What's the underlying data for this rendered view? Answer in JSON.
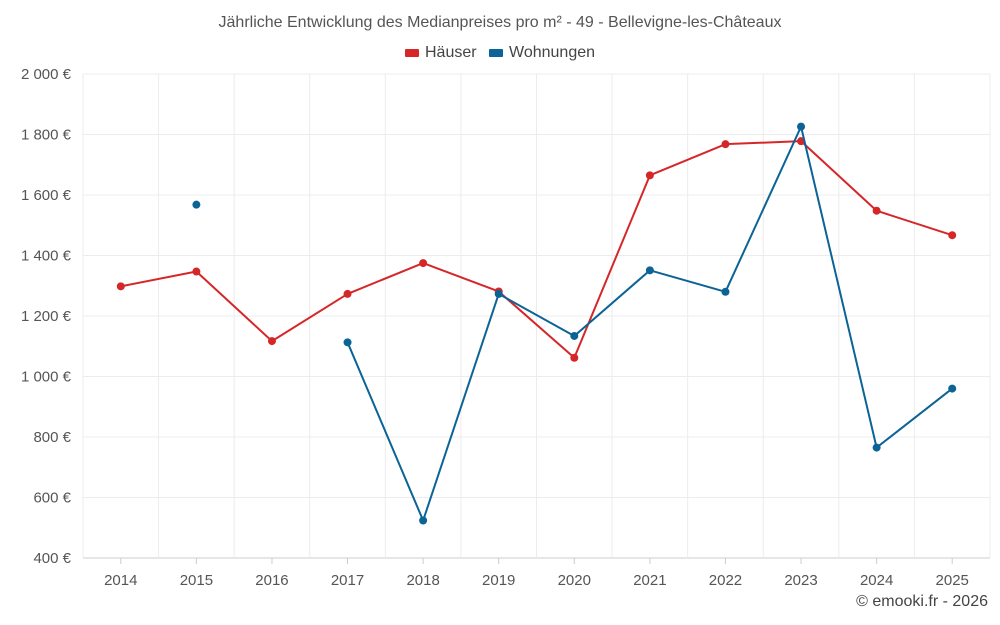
{
  "chart_data": {
    "type": "line",
    "title": "Jährliche Entwicklung des Medianpreises pro m² - 49 - Bellevigne-les-Châteaux",
    "categories": [
      "2014",
      "2015",
      "2016",
      "2017",
      "2018",
      "2019",
      "2020",
      "2021",
      "2022",
      "2023",
      "2024",
      "2025"
    ],
    "ylim": [
      400,
      2000
    ],
    "yticks": [
      400,
      600,
      800,
      1000,
      1200,
      1400,
      1600,
      1800,
      2000
    ],
    "ytick_labels": [
      "400 €",
      "600 €",
      "800 €",
      "1 000 €",
      "1 200 €",
      "1 400 €",
      "1 600 €",
      "1 800 €",
      "2 000 €"
    ],
    "grid": true,
    "legend_position": "top-center",
    "series": [
      {
        "name": "Häuser",
        "color": "#d62728",
        "values": [
          1298,
          1347,
          1117,
          1273,
          1375,
          1281,
          1062,
          1665,
          1768,
          1778,
          1548,
          1467
        ]
      },
      {
        "name": "Wohnungen",
        "color": "#0b6396",
        "values": [
          null,
          1568,
          null,
          1113,
          524,
          1273,
          1134,
          1351,
          1280,
          1826,
          765,
          960
        ]
      }
    ]
  },
  "footer": {
    "credit": "© emooki.fr - 2026"
  }
}
